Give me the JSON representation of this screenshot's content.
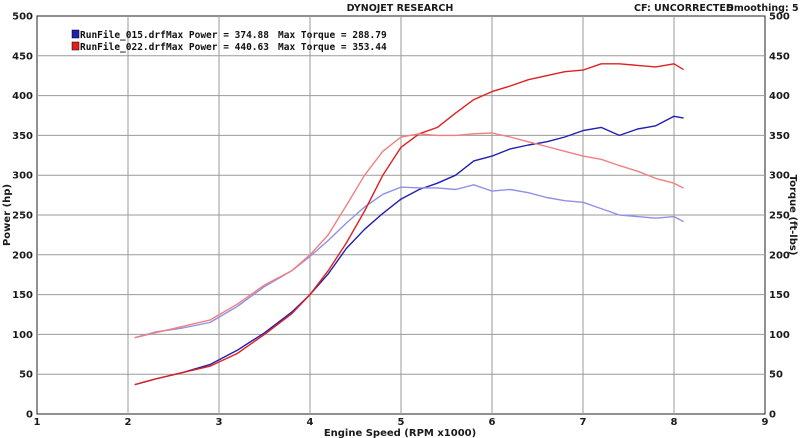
{
  "header": {
    "title": "DYNOJET RESEARCH",
    "cf_text": "CF: UNCORRECTED",
    "smoothing_text": "Smoothing: 5"
  },
  "legend": [
    {
      "file": "RunFile_015.drf",
      "power_text": "Max Power = 374.88",
      "torque_text": "Max Torque = 288.79",
      "color": "#1f1fb0"
    },
    {
      "file": "RunFile_022.drf",
      "power_text": "Max Power = 440.63",
      "torque_text": "Max Torque = 353.44",
      "color": "#e02020"
    }
  ],
  "chart_data": {
    "type": "line",
    "xlabel": "Engine Speed (RPM x1000)",
    "ylabel": "Power (hp)",
    "y2label": "Torque (ft-lbs)",
    "xlim": [
      1,
      9
    ],
    "ylim": [
      0,
      500
    ],
    "y2lim": [
      0,
      500
    ],
    "x_ticks": [
      "1",
      "2",
      "3",
      "4",
      "5",
      "6",
      "7",
      "8",
      "9"
    ],
    "y_ticks": [
      "0",
      "50",
      "100",
      "150",
      "200",
      "250",
      "300",
      "350",
      "400",
      "450",
      "500"
    ],
    "y2_ticks": [
      "0",
      "50",
      "100",
      "150",
      "200",
      "250",
      "300",
      "350",
      "400",
      "450",
      "500"
    ],
    "grid": true,
    "series": [
      {
        "name": "RunFile_015.drf",
        "measure": "Power",
        "color": "#1f1fb0",
        "x": [
          2.08,
          2.3,
          2.6,
          2.9,
          3.2,
          3.5,
          3.8,
          4.0,
          4.2,
          4.4,
          4.6,
          4.8,
          5.0,
          5.2,
          5.4,
          5.6,
          5.8,
          6.0,
          6.2,
          6.4,
          6.6,
          6.8,
          7.0,
          7.2,
          7.4,
          7.6,
          7.8,
          8.0,
          8.1
        ],
        "y": [
          37,
          44,
          52,
          62,
          80,
          102,
          128,
          150,
          176,
          208,
          232,
          252,
          270,
          282,
          290,
          300,
          318,
          324,
          333,
          338,
          342,
          348,
          356,
          360,
          350,
          358,
          362,
          374,
          372
        ]
      },
      {
        "name": "RunFile_015.drf",
        "measure": "Torque",
        "color": "#9090e8",
        "x": [
          2.08,
          2.3,
          2.6,
          2.9,
          3.2,
          3.5,
          3.8,
          4.0,
          4.2,
          4.4,
          4.6,
          4.8,
          5.0,
          5.2,
          5.4,
          5.6,
          5.8,
          6.0,
          6.2,
          6.4,
          6.6,
          6.8,
          7.0,
          7.2,
          7.4,
          7.6,
          7.8,
          8.0,
          8.1
        ],
        "y": [
          96,
          103,
          108,
          115,
          135,
          160,
          180,
          198,
          218,
          240,
          260,
          276,
          285,
          284,
          284,
          282,
          288,
          280,
          282,
          278,
          272,
          268,
          266,
          258,
          250,
          248,
          246,
          248,
          242
        ]
      },
      {
        "name": "RunFile_022.drf",
        "measure": "Power",
        "color": "#e02020",
        "x": [
          2.08,
          2.3,
          2.6,
          2.9,
          3.2,
          3.5,
          3.8,
          4.0,
          4.2,
          4.4,
          4.6,
          4.8,
          5.0,
          5.2,
          5.4,
          5.6,
          5.8,
          6.0,
          6.2,
          6.4,
          6.6,
          6.8,
          7.0,
          7.2,
          7.4,
          7.6,
          7.8,
          8.0,
          8.1
        ],
        "y": [
          37,
          44,
          52,
          60,
          76,
          100,
          126,
          150,
          180,
          215,
          255,
          300,
          335,
          352,
          360,
          378,
          395,
          405,
          412,
          420,
          425,
          430,
          432,
          440,
          440,
          438,
          436,
          440,
          433
        ]
      },
      {
        "name": "RunFile_022.drf",
        "measure": "Torque",
        "color": "#f08080",
        "x": [
          2.08,
          2.3,
          2.6,
          2.9,
          3.2,
          3.5,
          3.8,
          4.0,
          4.2,
          4.4,
          4.6,
          4.8,
          5.0,
          5.2,
          5.4,
          5.6,
          5.8,
          6.0,
          6.2,
          6.4,
          6.6,
          6.8,
          7.0,
          7.2,
          7.4,
          7.6,
          7.8,
          8.0,
          8.1
        ],
        "y": [
          96,
          102,
          110,
          118,
          138,
          162,
          180,
          200,
          225,
          262,
          300,
          330,
          348,
          352,
          350,
          350,
          352,
          353,
          348,
          342,
          336,
          330,
          324,
          320,
          312,
          305,
          296,
          290,
          284
        ]
      }
    ]
  }
}
